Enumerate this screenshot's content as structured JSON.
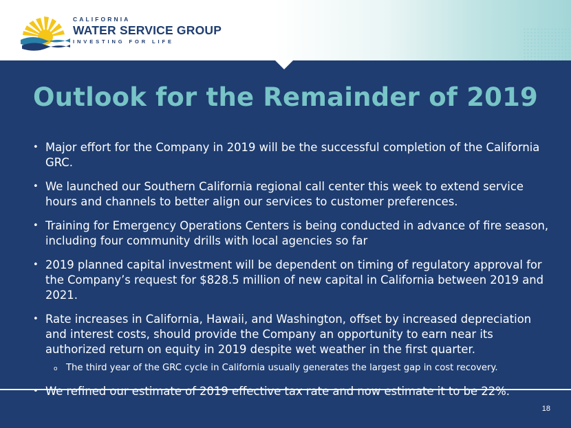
{
  "logo": {
    "top": "CALIFORNIA",
    "main": "WATER SERVICE GROUP",
    "sub": "INVESTING FOR LIFE"
  },
  "title": "Outlook for the Remainder of 2019",
  "bullets": [
    "Major effort for the Company in 2019 will be the successful completion of the California GRC.",
    "We launched our Southern California regional call center this week to extend service hours and channels to better align our services to customer preferences.",
    "Training for Emergency Operations Centers is being conducted in advance of fire season, including four community drills with local agencies so far",
    "2019 planned capital investment will be dependent on timing of regulatory approval for the Company’s request for $828.5 million of new capital in California between 2019 and 2021.",
    "Rate increases in California, Hawaii, and Washington, offset by increased depreciation and interest costs, should provide the Company an opportunity to earn near its authorized return on equity in 2019 despite wet weather in the first quarter.",
    "We refined our estimate of 2019 effective tax rate and now estimate it to be 22%."
  ],
  "sub_bullet": "The third year of the GRC cycle in California usually generates the largest gap in cost recovery.",
  "bullet_glyph": "•",
  "sub_glyph": "o",
  "page_number": "18",
  "colors": {
    "background": "#1f3d70",
    "title": "#78c4c7",
    "logo_sun": "#f5c518",
    "logo_wave": "#2a7fa8"
  }
}
